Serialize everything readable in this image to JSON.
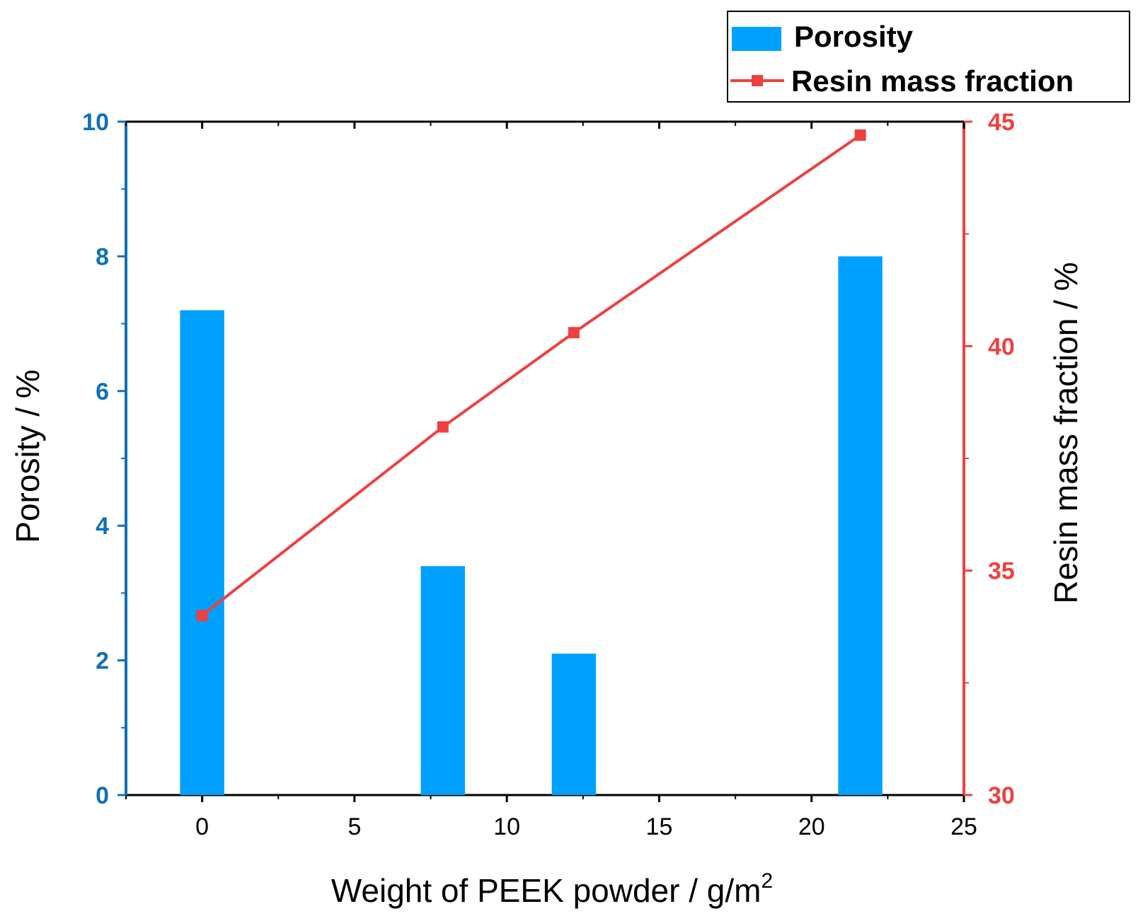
{
  "chart_data": {
    "type": "bar+line",
    "xlabel": "Weight of PEEK powder / g/m",
    "xlabel_superscript": "2",
    "ylabel": "Porosity / %",
    "y2label": "Resin mass fraction / %",
    "xlim": [
      -2.5,
      25
    ],
    "ylim": [
      0,
      10
    ],
    "y2lim": [
      30,
      45
    ],
    "x_ticks": [
      0,
      5,
      10,
      15,
      20,
      25
    ],
    "x_tick_labels": [
      "0",
      "5",
      "10",
      "15",
      "20",
      "25"
    ],
    "y_ticks": [
      0,
      2,
      4,
      6,
      8,
      10
    ],
    "y_tick_labels": [
      "0",
      "2",
      "4",
      "6",
      "8",
      "10"
    ],
    "y2_ticks": [
      30,
      35,
      40,
      45
    ],
    "y2_tick_labels": [
      "30",
      "35",
      "40",
      "45"
    ],
    "bar_width": 1.45,
    "series": [
      {
        "name": "Porosity",
        "type": "bar",
        "axis": "left",
        "color": "#00A0FF",
        "x": [
          0,
          7.9,
          12.2,
          21.6
        ],
        "values": [
          7.2,
          3.4,
          2.1,
          8.0
        ]
      },
      {
        "name": "Resin mass fraction",
        "type": "line",
        "marker": "square",
        "axis": "right",
        "color": "#EE4040",
        "x": [
          0,
          7.9,
          12.2,
          21.6
        ],
        "values": [
          34.0,
          38.2,
          40.3,
          44.7
        ]
      }
    ],
    "legend_position": "top-right",
    "left_axis_color": "#1070B8",
    "right_axis_color": "#EE4040"
  }
}
